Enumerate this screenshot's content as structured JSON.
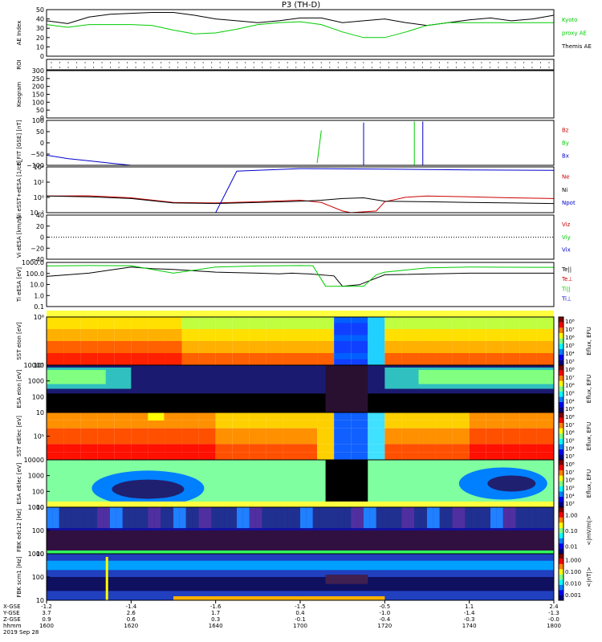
{
  "title": "P3 (TH-D)",
  "chart_data": [
    {
      "type": "line",
      "ylabel": "AE Index",
      "ylim": [
        0,
        50
      ],
      "yticks": [
        "0",
        "10",
        "20",
        "30",
        "40",
        "50"
      ],
      "legend": [
        {
          "label": "Kyoto",
          "color": "#00cc00"
        },
        {
          "label": "proxy AE",
          "color": "#00cc00"
        },
        {
          "label": "Themis AE",
          "color": "#000000"
        }
      ],
      "series": [
        {
          "name": "Themis AE",
          "color": "#000000",
          "x": [
            0,
            5,
            10,
            15,
            20,
            25,
            30,
            35,
            40,
            45,
            50,
            55,
            60,
            65,
            70,
            75,
            80,
            85,
            90,
            95,
            100,
            105,
            110,
            115,
            120
          ],
          "y": [
            38,
            35,
            42,
            45,
            46,
            47,
            47,
            44,
            40,
            38,
            36,
            38,
            41,
            41,
            36,
            38,
            40,
            36,
            33,
            36,
            39,
            41,
            38,
            40,
            44
          ]
        },
        {
          "name": "Kyoto proxy AE",
          "color": "#00cc00",
          "x": [
            0,
            5,
            10,
            15,
            20,
            25,
            30,
            35,
            40,
            45,
            50,
            55,
            60,
            65,
            70,
            75,
            80,
            85,
            90,
            95,
            100,
            105,
            110,
            115,
            120
          ],
          "y": [
            34,
            31,
            34,
            34,
            34,
            33,
            28,
            24,
            25,
            29,
            34,
            36,
            37,
            34,
            26,
            20,
            20,
            26,
            33,
            36,
            36,
            36,
            36,
            36,
            36
          ]
        }
      ]
    },
    {
      "type": "line",
      "ylabel": "ROI",
      "ylim": [
        0,
        1
      ],
      "yticks": [],
      "series": []
    },
    {
      "type": "line",
      "ylabel": "Keogram",
      "ylim": [
        0,
        300
      ],
      "yticks": [
        "0",
        "50",
        "100",
        "150",
        "200",
        "250",
        "300"
      ],
      "series": []
    },
    {
      "type": "line",
      "ylabel": "B_FIT [GSE] [nT]",
      "ylim": [
        -100,
        100
      ],
      "yticks": [
        "−100",
        "−50",
        "0",
        "50",
        "100"
      ],
      "legend": [
        {
          "label": "Bz",
          "color": "#cc0000"
        },
        {
          "label": "By",
          "color": "#00cc00"
        },
        {
          "label": "Bx",
          "color": "#0000cc"
        }
      ],
      "series": [
        {
          "name": "Bx",
          "color": "#0000cc",
          "x": [
            0,
            5,
            10,
            15,
            18,
            20
          ],
          "y": [
            -55,
            -70,
            -80,
            -90,
            -96,
            -100
          ]
        },
        {
          "name": "By",
          "color": "#00cc00",
          "x": [
            64,
            65
          ],
          "y": [
            -90,
            55
          ]
        }
      ]
    },
    {
      "type": "line",
      "ylabel": "Ni eSST+eESA [1/cc]",
      "yscale": "log",
      "ylim": [
        0.001,
        100000
      ],
      "yticks": [
        "10⁻²",
        "10⁰",
        "10²",
        "10⁴"
      ],
      "legend": [
        {
          "label": "Ne",
          "color": "#cc0000"
        },
        {
          "label": "Ni",
          "color": "#000000"
        },
        {
          "label": "Npot",
          "color": "#0000cc"
        }
      ],
      "series": [
        {
          "name": "Ne",
          "color": "#cc0000",
          "x": [
            0,
            10,
            20,
            30,
            40,
            50,
            60,
            65,
            70,
            72,
            78,
            80,
            85,
            90,
            100,
            110,
            120
          ],
          "y": [
            0.8,
            0.9,
            0.4,
            0.06,
            0.05,
            0.08,
            0.15,
            0.06,
            0.002,
            0.001,
            0.002,
            0.08,
            0.5,
            0.8,
            0.6,
            0.4,
            0.3
          ]
        },
        {
          "name": "Ni",
          "color": "#000000",
          "x": [
            0,
            10,
            20,
            30,
            40,
            50,
            60,
            65,
            70,
            75,
            80,
            90,
            100,
            110,
            120
          ],
          "y": [
            0.8,
            0.6,
            0.3,
            0.05,
            0.04,
            0.06,
            0.1,
            0.15,
            0.3,
            0.4,
            0.1,
            0.08,
            0.06,
            0.05,
            0.04
          ]
        },
        {
          "name": "Npot",
          "color": "#0000cc",
          "x": [
            0,
            20,
            40,
            45,
            60,
            80,
            100,
            120
          ],
          "y": [
            0.001,
            0.001,
            0.001,
            18000,
            50000,
            40000,
            30000,
            25000
          ]
        }
      ]
    },
    {
      "type": "line",
      "ylabel": "Vi eESA [km/s]",
      "ylim": [
        -50,
        50
      ],
      "yticks": [
        "−40",
        "−20",
        "0",
        "20",
        "40"
      ],
      "legend": [
        {
          "label": "Viz",
          "color": "#cc0000"
        },
        {
          "label": "Viy",
          "color": "#00cc00"
        },
        {
          "label": "Vix",
          "color": "#0000cc"
        }
      ],
      "series": []
    },
    {
      "type": "line",
      "ylabel": "Ti eESA [eV]",
      "yscale": "log",
      "ylim": [
        0.05,
        5000
      ],
      "yticks": [
        "0.1",
        "1.0",
        "10.0",
        "100.0",
        "1000.0"
      ],
      "legend": [
        {
          "label": "Te||",
          "color": "#000000"
        },
        {
          "label": "Te⊥",
          "color": "#cc0000"
        },
        {
          "label": "Ti||",
          "color": "#00cc00"
        },
        {
          "label": "Ti⊥",
          "color": "#0000cc"
        }
      ],
      "series": [
        {
          "name": "Te||",
          "color": "#000000",
          "x": [
            0,
            10,
            20,
            25,
            30,
            40,
            50,
            55,
            58,
            62,
            68,
            70,
            74,
            80,
            100,
            120
          ],
          "y": [
            130,
            300,
            1500,
            1000,
            800,
            400,
            300,
            250,
            300,
            250,
            150,
            10,
            15,
            200,
            300,
            300
          ]
        },
        {
          "name": "Ti||",
          "color": "#00cc00",
          "x": [
            0,
            10,
            20,
            30,
            40,
            50,
            60,
            63,
            66,
            75,
            78,
            80,
            90,
            100,
            120
          ],
          "y": [
            2000,
            2200,
            2100,
            300,
            1500,
            2000,
            2200,
            2100,
            10,
            10,
            200,
            400,
            1200,
            1500,
            1400
          ]
        }
      ]
    },
    {
      "type": "heatmap",
      "ylabel": "SST eIon [eV]",
      "colorbar": "Eflux, EFU",
      "cbticks": [
        "10³",
        "10⁴",
        "10⁵",
        "10⁶",
        "10⁷",
        "10⁸"
      ],
      "yticks": [
        "10⁵",
        "10⁶"
      ]
    },
    {
      "type": "heatmap",
      "ylabel": "ESA eIon [eV]",
      "colorbar": "Eflux, EFU",
      "cbticks": [
        "10³",
        "10⁴",
        "10⁵",
        "10⁶",
        "10⁷",
        "10⁸"
      ],
      "yticks": [
        "10",
        "100",
        "1000",
        "10000"
      ]
    },
    {
      "type": "heatmap",
      "ylabel": "SST eElec [eV]",
      "colorbar": "Eflux, EFU",
      "cbticks": [
        "10³",
        "10⁴",
        "10⁵",
        "10⁶",
        "10⁷",
        "10⁸"
      ],
      "yticks": [
        "10⁵"
      ]
    },
    {
      "type": "heatmap",
      "ylabel": "ESA eElec [eV]",
      "colorbar": "Eflux, EFU",
      "cbticks": [
        "10³",
        "10⁴",
        "10⁵",
        "10⁶",
        "10⁷",
        "10⁸"
      ],
      "yticks": [
        "10",
        "100",
        "1000",
        "10000"
      ]
    },
    {
      "type": "heatmap",
      "ylabel": "FBK edc12 [Hz]",
      "colorbar": "<|mV/m|>",
      "cbticks": [
        "0.01",
        "0.10",
        "1.00"
      ],
      "yticks": [
        "10",
        "100",
        "1000"
      ]
    },
    {
      "type": "heatmap",
      "ylabel": "FBK scm1 [Hz]",
      "colorbar": "<|nT|>",
      "cbticks": [
        "0.001",
        "0.010",
        "0.100",
        "1.000"
      ],
      "yticks": [
        "10",
        "100",
        "1000"
      ]
    }
  ],
  "xaxis": {
    "row_labels": [
      "X-GSE",
      "Y-GSE",
      "Z-GSE",
      "hhmm",
      "2019 Sep 28"
    ],
    "ticks": [
      {
        "x": "-1.2",
        "y": "3.7",
        "z": "0.9",
        "t": "1600"
      },
      {
        "x": "-1.4",
        "y": "2.6",
        "z": "0.6",
        "t": "1620"
      },
      {
        "x": "-1.6",
        "y": "1.7",
        "z": "0.3",
        "t": "1640"
      },
      {
        "x": "-1.5",
        "y": "0.4",
        "z": "-0.1",
        "t": "1700"
      },
      {
        "x": "-0.5",
        "y": "-1.0",
        "z": "-0.4",
        "t": "1720"
      },
      {
        "x": "1.1",
        "y": "-1.4",
        "z": "-0.3",
        "t": "1740"
      },
      {
        "x": "2.4",
        "y": "-1.3",
        "z": "-0.0",
        "t": "1800"
      }
    ]
  }
}
